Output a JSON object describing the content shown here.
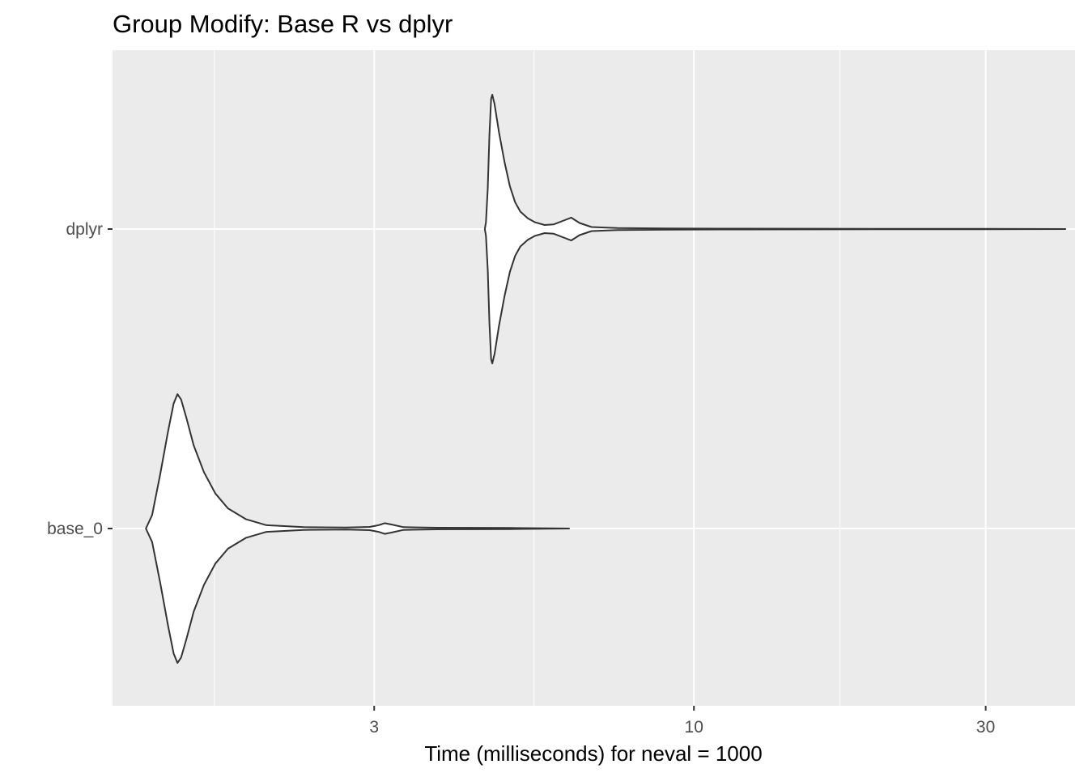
{
  "chart_data": {
    "type": "violin",
    "title": "Group Modify: Base R vs dplyr",
    "xlabel": "Time (milliseconds) for neval = 1000",
    "ylabel": "",
    "x_scale": "log10",
    "xlim": [
      1.12,
      42
    ],
    "x_ticks": [
      3,
      10,
      30
    ],
    "x_tick_labels": [
      "3",
      "10",
      "30"
    ],
    "categories": [
      "dplyr",
      "base_0"
    ],
    "panel_background": "#ebebeb",
    "grid_color": "#ffffff",
    "violin_fill": "#ffffff",
    "violin_stroke": "#333333",
    "series": [
      {
        "category": "dplyr",
        "min": 4.55,
        "max": 40.5,
        "profile": [
          [
            4.55,
            0.0
          ],
          [
            4.57,
            0.05
          ],
          [
            4.6,
            0.3
          ],
          [
            4.63,
            0.7
          ],
          [
            4.66,
            0.97
          ],
          [
            4.68,
            1.0
          ],
          [
            4.72,
            0.93
          ],
          [
            4.8,
            0.72
          ],
          [
            4.9,
            0.5
          ],
          [
            5.0,
            0.32
          ],
          [
            5.1,
            0.2
          ],
          [
            5.2,
            0.13
          ],
          [
            5.35,
            0.08
          ],
          [
            5.5,
            0.05
          ],
          [
            5.7,
            0.03
          ],
          [
            5.9,
            0.035
          ],
          [
            6.1,
            0.06
          ],
          [
            6.3,
            0.085
          ],
          [
            6.5,
            0.045
          ],
          [
            6.8,
            0.015
          ],
          [
            7.5,
            0.008
          ],
          [
            9.0,
            0.004
          ],
          [
            12.0,
            0.003
          ],
          [
            20.0,
            0.002
          ],
          [
            30.0,
            0.002
          ],
          [
            40.5,
            0.0
          ]
        ]
      },
      {
        "category": "base_0",
        "min": 1.27,
        "max": 6.25,
        "profile": [
          [
            1.27,
            0.0
          ],
          [
            1.3,
            0.1
          ],
          [
            1.34,
            0.4
          ],
          [
            1.38,
            0.72
          ],
          [
            1.41,
            0.93
          ],
          [
            1.43,
            1.0
          ],
          [
            1.45,
            0.96
          ],
          [
            1.48,
            0.82
          ],
          [
            1.52,
            0.62
          ],
          [
            1.58,
            0.42
          ],
          [
            1.65,
            0.26
          ],
          [
            1.73,
            0.15
          ],
          [
            1.85,
            0.07
          ],
          [
            2.0,
            0.025
          ],
          [
            2.3,
            0.01
          ],
          [
            2.7,
            0.008
          ],
          [
            2.95,
            0.012
          ],
          [
            3.05,
            0.025
          ],
          [
            3.12,
            0.04
          ],
          [
            3.2,
            0.03
          ],
          [
            3.35,
            0.01
          ],
          [
            3.8,
            0.006
          ],
          [
            5.0,
            0.004
          ],
          [
            6.25,
            0.0
          ]
        ]
      }
    ]
  }
}
